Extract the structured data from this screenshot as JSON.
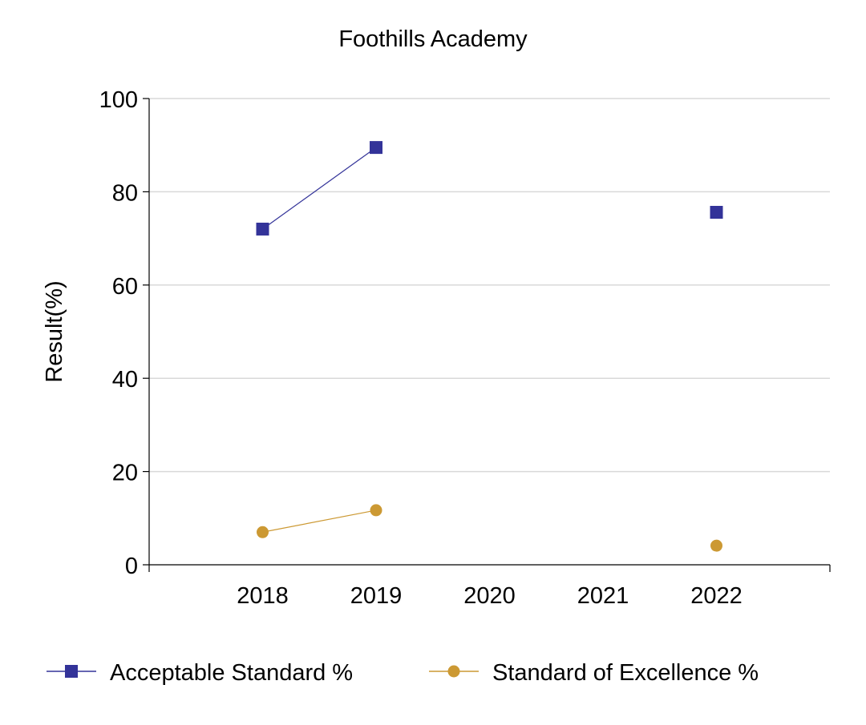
{
  "chart_data": {
    "type": "line",
    "title": "Foothills Academy",
    "xlabel": "",
    "ylabel": "Result(%)",
    "categories": [
      "2018",
      "2019",
      "2020",
      "2021",
      "2022"
    ],
    "ylim": [
      0,
      100
    ],
    "yticks": [
      "0",
      "20",
      "40",
      "60",
      "80",
      "100"
    ],
    "grid": true,
    "legend_position": "bottom",
    "series": [
      {
        "name": "Acceptable Standard %",
        "marker": "square",
        "color": "#333399",
        "values": [
          72.0,
          89.5,
          null,
          null,
          75.6
        ]
      },
      {
        "name": "Standard of Excellence %",
        "marker": "circle",
        "color": "#cc9933",
        "values": [
          7.0,
          11.7,
          null,
          null,
          4.1
        ]
      }
    ]
  }
}
